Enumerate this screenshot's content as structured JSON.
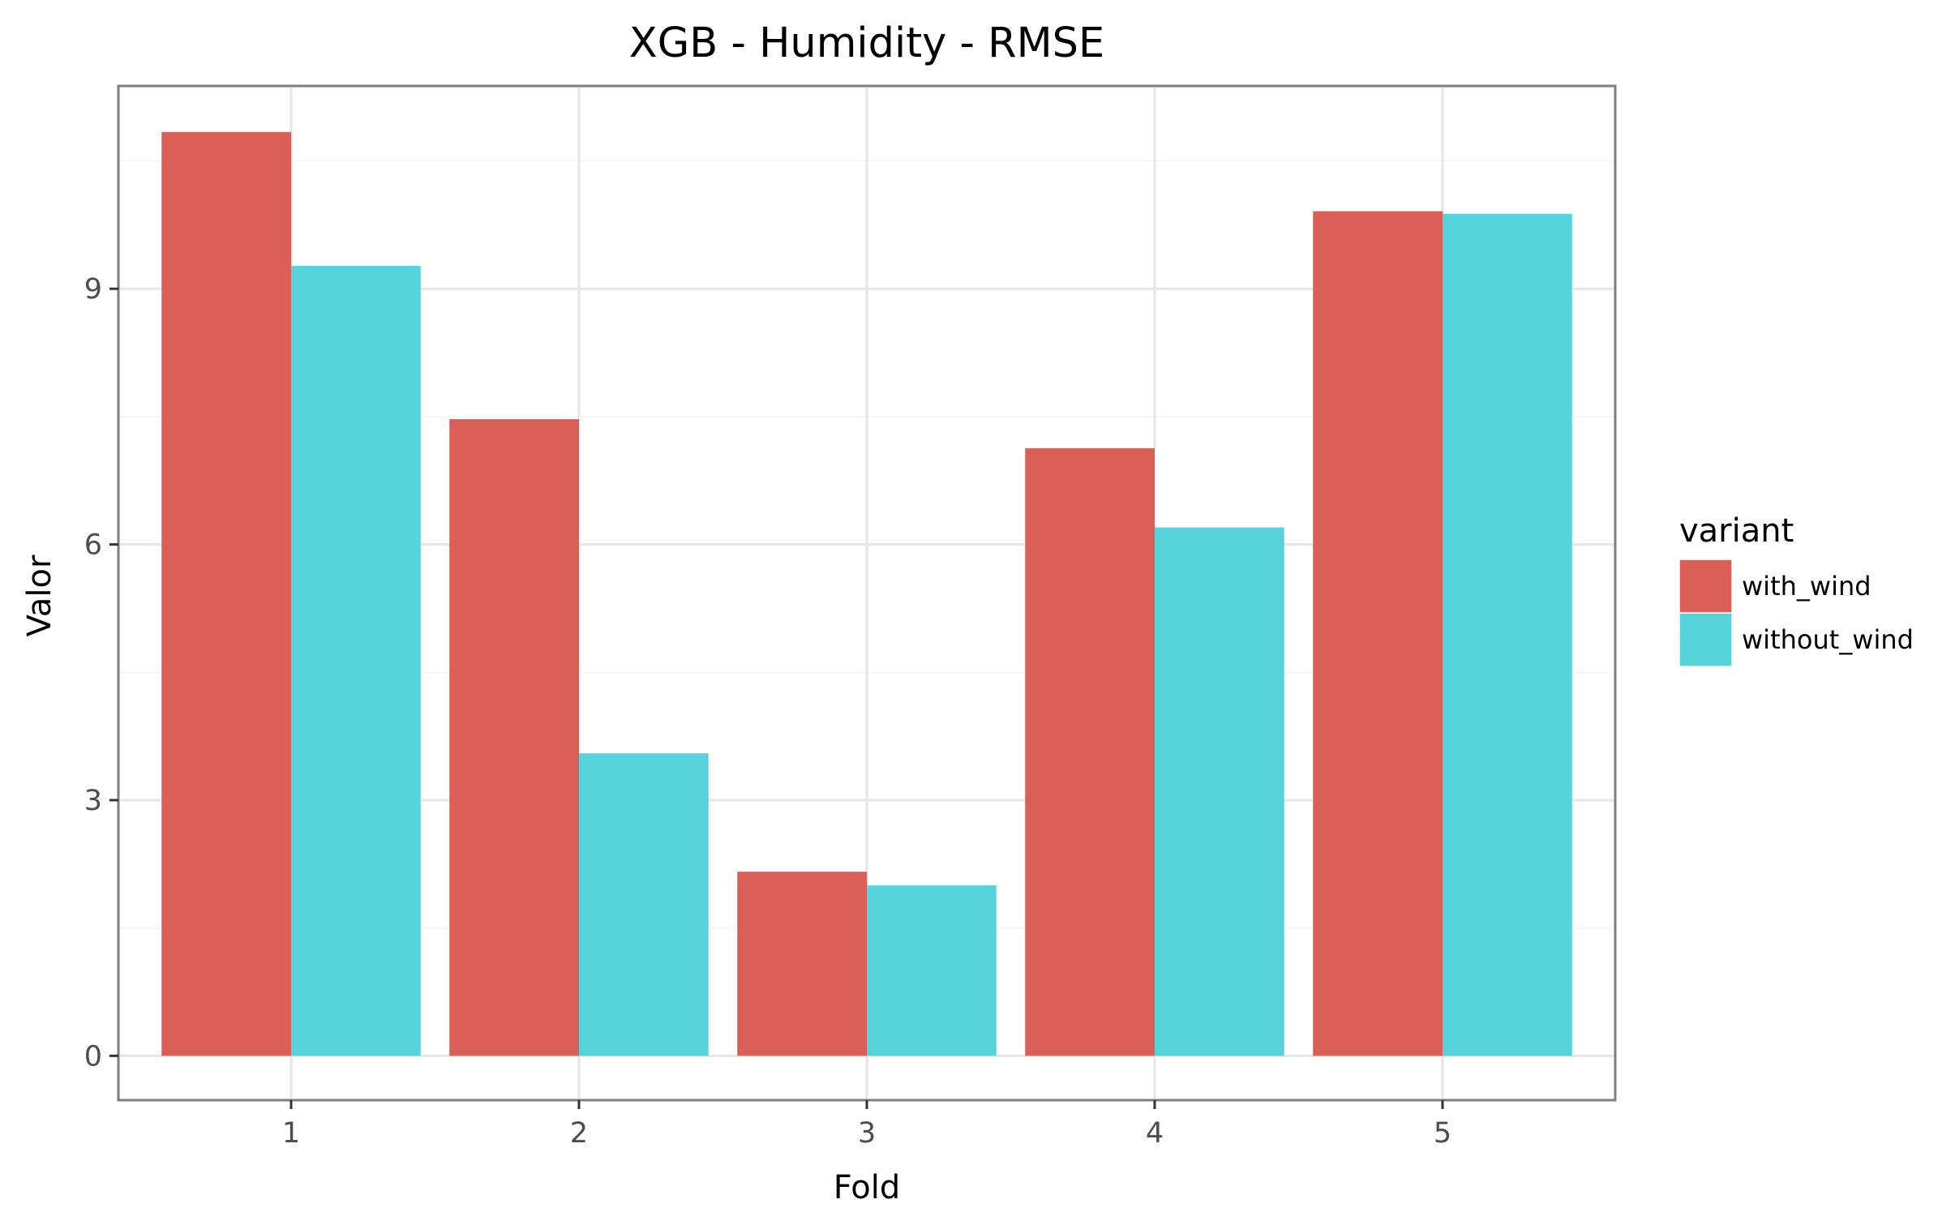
{
  "chart_data": {
    "type": "bar",
    "title": "XGB - Humidity - RMSE",
    "xlabel": "Fold",
    "ylabel": "Valor",
    "categories": [
      "1",
      "2",
      "3",
      "4",
      "5"
    ],
    "ylim": [
      -0.52,
      11.38
    ],
    "yticks": [
      0,
      3,
      6,
      9
    ],
    "ytick_labels": [
      "0",
      "3",
      "6",
      "9"
    ],
    "grid": true,
    "legend": {
      "title": "variant",
      "position": "right"
    },
    "series": [
      {
        "name": "with_wind",
        "color": "#DB5F57",
        "values": [
          10.84,
          7.47,
          2.16,
          7.13,
          9.91
        ]
      },
      {
        "name": "without_wind",
        "color": "#57D3DB",
        "values": [
          9.27,
          3.55,
          2.0,
          6.2,
          9.88
        ]
      }
    ]
  }
}
